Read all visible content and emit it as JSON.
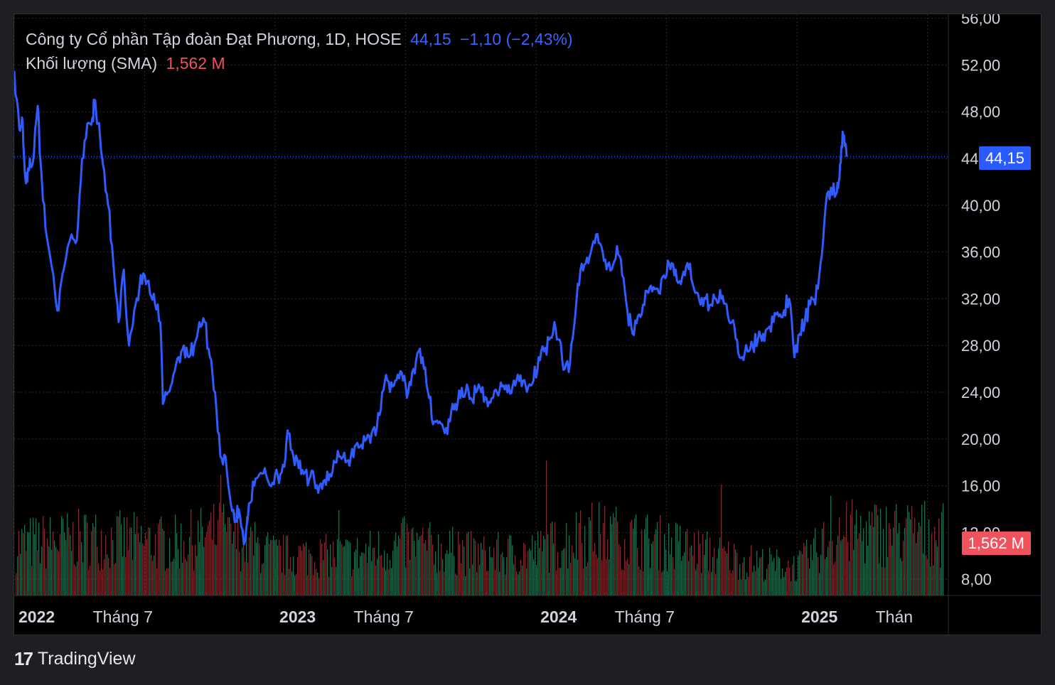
{
  "legend": {
    "symbol": "Công ty Cổ phần Tập đoàn Đạt Phương, 1D, HOSE",
    "last": "44,15",
    "change": "−1,10 (−2,43%)",
    "volume_label": "Khối lượng (SMA)",
    "volume_value": "1,562 M"
  },
  "badges": {
    "price": "44,15",
    "volume": "1,562 M"
  },
  "brand": {
    "logo": "17",
    "name": "TradingView"
  },
  "colors": {
    "line": "#2f5bff",
    "vol_up": "#1e6b52",
    "vol_down": "#7a2b30",
    "grid": "#2a2b31",
    "axis_text": "#d1d4dc"
  },
  "chart_data": {
    "type": "line",
    "title": "Công ty Cổ phần Tập đoàn Đạt Phương, 1D, HOSE",
    "interval": "1D",
    "ylim": [
      8,
      56
    ],
    "y_ticks": [
      "56,00",
      "52,00",
      "48,00",
      "44,00",
      "40,00",
      "36,00",
      "32,00",
      "28,00",
      "24,00",
      "20,00",
      "16,00",
      "12,00",
      "8,00"
    ],
    "y_tick_values": [
      56,
      52,
      48,
      44,
      40,
      36,
      32,
      28,
      24,
      20,
      16,
      12,
      8
    ],
    "x_range": [
      2022.0,
      2025.58
    ],
    "x_ticks": [
      {
        "t": 2022.0,
        "label": "2022",
        "bold": true
      },
      {
        "t": 2022.5,
        "label": "Tháng 7",
        "bold": false
      },
      {
        "t": 2023.0,
        "label": "2023",
        "bold": true
      },
      {
        "t": 2023.5,
        "label": "Tháng 7",
        "bold": false
      },
      {
        "t": 2024.0,
        "label": "2024",
        "bold": true
      },
      {
        "t": 2024.5,
        "label": "Tháng 7",
        "bold": false
      },
      {
        "t": 2025.0,
        "label": "2025",
        "bold": true
      },
      {
        "t": 2025.5,
        "label": "Thán",
        "bold": false
      }
    ],
    "last_price": 44.15,
    "price_series": {
      "name": "Close",
      "points": [
        [
          2022.0,
          51.5
        ],
        [
          2022.02,
          46.5
        ],
        [
          2022.03,
          47.5
        ],
        [
          2022.04,
          43.0
        ],
        [
          2022.05,
          42.0
        ],
        [
          2022.06,
          44.0
        ],
        [
          2022.07,
          43.5
        ],
        [
          2022.09,
          48.5
        ],
        [
          2022.1,
          44.0
        ],
        [
          2022.12,
          38.0
        ],
        [
          2022.15,
          34.0
        ],
        [
          2022.17,
          31.0
        ],
        [
          2022.19,
          34.5
        ],
        [
          2022.22,
          37.5
        ],
        [
          2022.24,
          37.0
        ],
        [
          2022.26,
          44.0
        ],
        [
          2022.28,
          47.0
        ],
        [
          2022.3,
          47.5
        ],
        [
          2022.31,
          49.0
        ],
        [
          2022.34,
          43.5
        ],
        [
          2022.36,
          40.0
        ],
        [
          2022.38,
          35.0
        ],
        [
          2022.4,
          30.0
        ],
        [
          2022.42,
          34.5
        ],
        [
          2022.44,
          28.0
        ],
        [
          2022.46,
          31.0
        ],
        [
          2022.48,
          33.0
        ],
        [
          2022.5,
          34.0
        ],
        [
          2022.52,
          32.5
        ],
        [
          2022.54,
          31.5
        ],
        [
          2022.56,
          30.0
        ],
        [
          2022.57,
          23.0
        ],
        [
          2022.59,
          24.0
        ],
        [
          2022.61,
          25.5
        ],
        [
          2022.63,
          27.0
        ],
        [
          2022.65,
          28.0
        ],
        [
          2022.67,
          27.0
        ],
        [
          2022.69,
          28.0
        ],
        [
          2022.71,
          30.0
        ],
        [
          2022.73,
          30.0
        ],
        [
          2022.75,
          27.0
        ],
        [
          2022.77,
          24.0
        ],
        [
          2022.79,
          18.5
        ],
        [
          2022.81,
          18.5
        ],
        [
          2022.83,
          14.5
        ],
        [
          2022.85,
          13.0
        ],
        [
          2022.86,
          14.0
        ],
        [
          2022.88,
          11.0
        ],
        [
          2022.9,
          14.5
        ],
        [
          2022.92,
          16.0
        ],
        [
          2022.94,
          17.0
        ],
        [
          2022.96,
          17.5
        ],
        [
          2022.98,
          16.0
        ],
        [
          2023.0,
          17.0
        ],
        [
          2023.02,
          17.0
        ],
        [
          2023.04,
          18.5
        ],
        [
          2023.05,
          20.5
        ],
        [
          2023.07,
          18.5
        ],
        [
          2023.09,
          17.5
        ],
        [
          2023.11,
          17.0
        ],
        [
          2023.13,
          16.5
        ],
        [
          2023.15,
          16.5
        ],
        [
          2023.17,
          16.0
        ],
        [
          2023.19,
          16.5
        ],
        [
          2023.21,
          17.0
        ],
        [
          2023.23,
          18.0
        ],
        [
          2023.25,
          18.5
        ],
        [
          2023.27,
          18.0
        ],
        [
          2023.29,
          18.5
        ],
        [
          2023.31,
          19.5
        ],
        [
          2023.33,
          19.5
        ],
        [
          2023.35,
          20.0
        ],
        [
          2023.37,
          20.5
        ],
        [
          2023.39,
          21.0
        ],
        [
          2023.41,
          24.0
        ],
        [
          2023.43,
          25.0
        ],
        [
          2023.45,
          24.5
        ],
        [
          2023.47,
          25.5
        ],
        [
          2023.49,
          25.0
        ],
        [
          2023.51,
          24.0
        ],
        [
          2023.53,
          26.0
        ],
        [
          2023.55,
          27.5
        ],
        [
          2023.57,
          26.0
        ],
        [
          2023.59,
          23.5
        ],
        [
          2023.61,
          21.5
        ],
        [
          2023.63,
          21.5
        ],
        [
          2023.65,
          20.5
        ],
        [
          2023.67,
          21.5
        ],
        [
          2023.69,
          23.0
        ],
        [
          2023.71,
          23.5
        ],
        [
          2023.73,
          24.0
        ],
        [
          2023.75,
          23.5
        ],
        [
          2023.77,
          24.0
        ],
        [
          2023.79,
          24.0
        ],
        [
          2023.81,
          23.5
        ],
        [
          2023.83,
          23.5
        ],
        [
          2023.85,
          24.0
        ],
        [
          2023.87,
          24.5
        ],
        [
          2023.89,
          24.0
        ],
        [
          2023.91,
          24.5
        ],
        [
          2023.93,
          25.5
        ],
        [
          2023.95,
          25.0
        ],
        [
          2023.97,
          24.5
        ],
        [
          2023.99,
          25.0
        ],
        [
          2024.01,
          27.0
        ],
        [
          2024.03,
          27.5
        ],
        [
          2024.05,
          28.5
        ],
        [
          2024.07,
          30.0
        ],
        [
          2024.09,
          28.5
        ],
        [
          2024.11,
          26.0
        ],
        [
          2024.13,
          26.5
        ],
        [
          2024.15,
          30.5
        ],
        [
          2024.17,
          34.5
        ],
        [
          2024.19,
          35.0
        ],
        [
          2024.21,
          36.0
        ],
        [
          2024.23,
          37.5
        ],
        [
          2024.25,
          36.5
        ],
        [
          2024.27,
          34.5
        ],
        [
          2024.29,
          34.5
        ],
        [
          2024.31,
          36.5
        ],
        [
          2024.33,
          34.0
        ],
        [
          2024.35,
          31.0
        ],
        [
          2024.37,
          29.0
        ],
        [
          2024.39,
          30.5
        ],
        [
          2024.41,
          31.5
        ],
        [
          2024.43,
          32.5
        ],
        [
          2024.45,
          33.0
        ],
        [
          2024.47,
          32.5
        ],
        [
          2024.49,
          34.0
        ],
        [
          2024.51,
          35.0
        ],
        [
          2024.53,
          34.0
        ],
        [
          2024.55,
          33.5
        ],
        [
          2024.57,
          34.0
        ],
        [
          2024.59,
          35.0
        ],
        [
          2024.61,
          32.5
        ],
        [
          2024.63,
          31.5
        ],
        [
          2024.65,
          32.0
        ],
        [
          2024.67,
          31.5
        ],
        [
          2024.69,
          32.0
        ],
        [
          2024.71,
          32.0
        ],
        [
          2024.73,
          31.5
        ],
        [
          2024.75,
          30.0
        ],
        [
          2024.77,
          28.5
        ],
        [
          2024.79,
          27.0
        ],
        [
          2024.81,
          27.5
        ],
        [
          2024.83,
          28.0
        ],
        [
          2024.85,
          28.5
        ],
        [
          2024.87,
          29.0
        ],
        [
          2024.89,
          29.5
        ],
        [
          2024.91,
          30.0
        ],
        [
          2024.93,
          30.5
        ],
        [
          2024.95,
          31.0
        ],
        [
          2024.97,
          32.0
        ],
        [
          2024.99,
          27.0
        ],
        [
          2025.01,
          29.0
        ],
        [
          2025.03,
          30.0
        ],
        [
          2025.05,
          31.5
        ],
        [
          2025.07,
          31.5
        ],
        [
          2025.09,
          35.0
        ],
        [
          2025.11,
          40.0
        ],
        [
          2025.13,
          41.5
        ],
        [
          2025.15,
          41.0
        ],
        [
          2025.16,
          42.0
        ],
        [
          2025.17,
          45.0
        ],
        [
          2025.18,
          46.0
        ],
        [
          2025.19,
          44.15
        ]
      ]
    },
    "volume": {
      "name": "Khối lượng (SMA)",
      "last_value": "1,562 M",
      "profile": [
        [
          2022.0,
          0.45
        ],
        [
          2022.3,
          0.5
        ],
        [
          2022.6,
          0.45
        ],
        [
          2022.8,
          0.55
        ],
        [
          2023.0,
          0.35
        ],
        [
          2023.3,
          0.35
        ],
        [
          2023.5,
          0.45
        ],
        [
          2023.8,
          0.35
        ],
        [
          2024.0,
          0.38
        ],
        [
          2024.2,
          0.55
        ],
        [
          2024.5,
          0.45
        ],
        [
          2024.8,
          0.3
        ],
        [
          2025.0,
          0.25
        ],
        [
          2025.1,
          0.45
        ],
        [
          2025.2,
          0.55
        ]
      ],
      "spikes": [
        [
          2022.79,
          0.85
        ],
        [
          2022.82,
          0.55
        ],
        [
          2023.24,
          0.6
        ],
        [
          2023.7,
          0.45
        ],
        [
          2024.04,
          0.95
        ],
        [
          2024.17,
          0.6
        ],
        [
          2024.3,
          0.55
        ],
        [
          2024.71,
          0.78
        ],
        [
          2025.13,
          0.7
        ],
        [
          2025.16,
          0.55
        ]
      ]
    }
  }
}
